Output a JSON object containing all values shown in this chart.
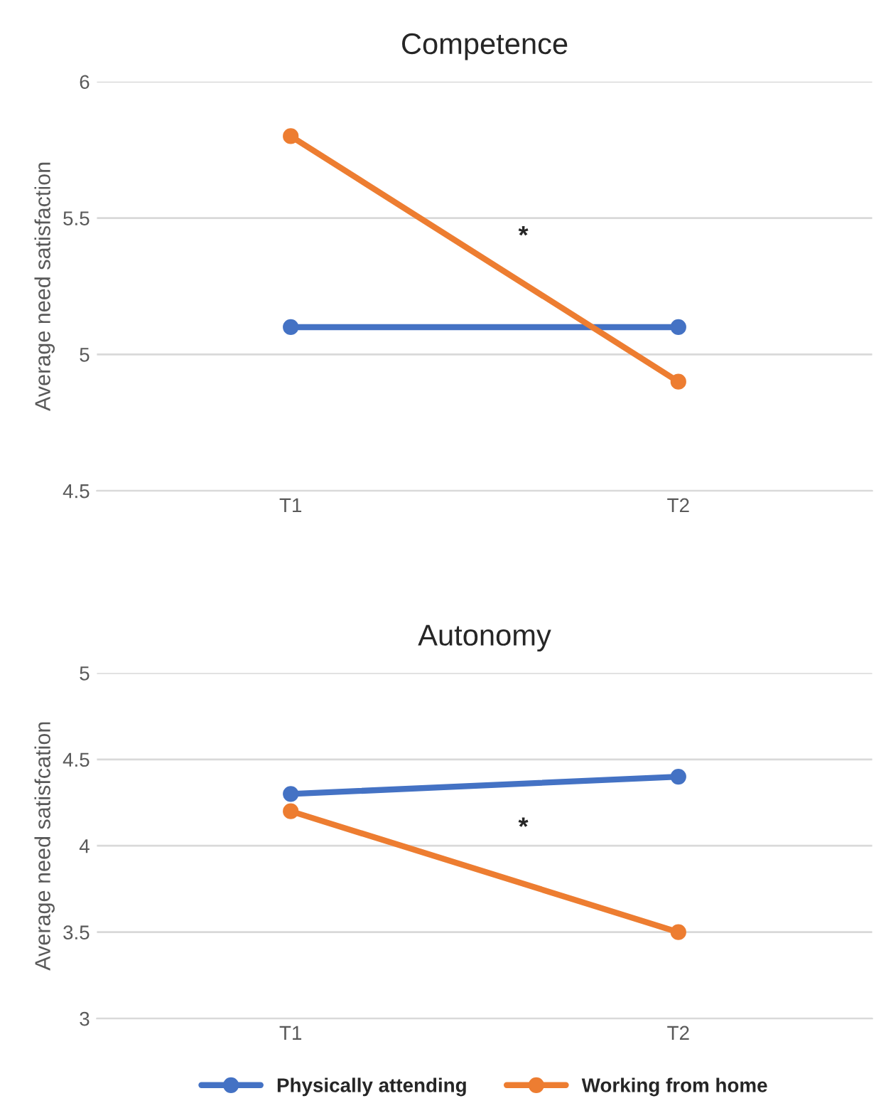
{
  "chart_data": [
    {
      "type": "line",
      "title": "Competence",
      "ylabel": "Average need satisfaction",
      "categories": [
        "T1",
        "T2"
      ],
      "series": [
        {
          "color": "#4472c4",
          "values": [
            5.1,
            5.1
          ]
        },
        {
          "color": "#ed7d31",
          "values": [
            5.8,
            4.9
          ]
        }
      ],
      "ylim": [
        4.5,
        6
      ],
      "yticks": [
        4.5,
        5,
        5.5,
        6
      ],
      "grid": "y",
      "marker": "circle",
      "line_style": "solid",
      "annotations": [
        "*"
      ]
    },
    {
      "type": "line",
      "title": "Autonomy",
      "ylabel": "Average need satisfcation",
      "categories": [
        "T1",
        "T2"
      ],
      "series": [
        {
          "name": "Physically attending",
          "color": "#4472c4",
          "values": [
            4.3,
            4.4
          ]
        },
        {
          "name": "Working from home",
          "color": "#ed7d31",
          "values": [
            4.2,
            3.5
          ]
        }
      ],
      "ylim": [
        3,
        5
      ],
      "yticks": [
        3,
        3.5,
        4,
        4.5,
        5
      ],
      "grid": "y",
      "marker": "circle",
      "line_style": "solid",
      "legend": "bottom",
      "annotations": [
        "*"
      ]
    }
  ]
}
